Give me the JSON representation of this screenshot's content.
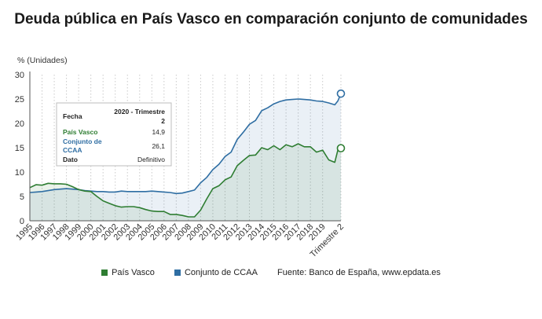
{
  "title": "Deuda pública en País Vasco en comparación conjunto de comunidades",
  "chart_data": {
    "type": "area",
    "title": "Deuda pública en País Vasco en comparación conjunto de comunidades",
    "ylabel": "% (Unidades)",
    "xlabel": "",
    "ylim": [
      0,
      30
    ],
    "yticks": [
      0,
      5,
      10,
      15,
      20,
      25,
      30
    ],
    "xlim": [
      1995,
      2020.5
    ],
    "xtick_labels": [
      "1995",
      "1996",
      "1997",
      "1998",
      "1999",
      "2000",
      "2001",
      "2002",
      "2003",
      "2004",
      "2005",
      "2006",
      "2007",
      "2008",
      "2009",
      "2010",
      "2011",
      "2012",
      "2013",
      "2014",
      "2015",
      "2016",
      "2017",
      "2018",
      "2019",
      "Trimestre 2"
    ],
    "grid": "vertical dotted",
    "legend_position": "bottom",
    "series": [
      {
        "name": "País Vasco",
        "color": "#2e7d32",
        "x": [
          1995,
          1995.5,
          1996,
          1996.5,
          1997,
          1997.5,
          1998,
          1998.5,
          1999,
          1999.5,
          2000,
          2000.5,
          2001,
          2001.5,
          2002,
          2002.5,
          2003,
          2003.5,
          2004,
          2004.5,
          2005,
          2005.5,
          2006,
          2006.5,
          2007,
          2007.5,
          2008,
          2008.5,
          2009,
          2009.5,
          2010,
          2010.5,
          2011,
          2011.5,
          2012,
          2012.5,
          2013,
          2013.5,
          2014,
          2014.5,
          2015,
          2015.5,
          2016,
          2016.5,
          2017,
          2017.5,
          2018,
          2018.5,
          2019,
          2019.5,
          2020,
          2020.25,
          2020.5
        ],
        "values": [
          6.8,
          7.4,
          7.3,
          7.7,
          7.6,
          7.6,
          7.5,
          7.0,
          6.4,
          6.1,
          6.0,
          5.0,
          4.1,
          3.6,
          3.1,
          2.8,
          2.9,
          2.9,
          2.7,
          2.3,
          2.0,
          1.9,
          1.9,
          1.3,
          1.3,
          1.1,
          0.8,
          0.8,
          2.2,
          4.5,
          6.6,
          7.2,
          8.4,
          9.0,
          11.3,
          12.4,
          13.4,
          13.5,
          15.0,
          14.6,
          15.4,
          14.6,
          15.6,
          15.2,
          15.8,
          15.2,
          15.2,
          14.1,
          14.5,
          12.5,
          12.0,
          14.5,
          14.9
        ]
      },
      {
        "name": "Conjunto de CCAA",
        "color": "#2f6ea3",
        "x": [
          1995,
          1995.5,
          1996,
          1996.5,
          1997,
          1997.5,
          1998,
          1998.5,
          1999,
          1999.5,
          2000,
          2000.5,
          2001,
          2001.5,
          2002,
          2002.5,
          2003,
          2003.5,
          2004,
          2004.5,
          2005,
          2005.5,
          2006,
          2006.5,
          2007,
          2007.5,
          2008,
          2008.5,
          2009,
          2009.5,
          2010,
          2010.5,
          2011,
          2011.5,
          2012,
          2012.5,
          2013,
          2013.5,
          2014,
          2014.5,
          2015,
          2015.5,
          2016,
          2016.5,
          2017,
          2017.5,
          2018,
          2018.5,
          2019,
          2019.5,
          2020,
          2020.25,
          2020.5
        ],
        "values": [
          5.8,
          5.9,
          6.0,
          6.2,
          6.4,
          6.5,
          6.6,
          6.5,
          6.4,
          6.2,
          6.1,
          6.0,
          6.0,
          5.9,
          5.9,
          6.1,
          6.0,
          6.0,
          6.0,
          6.0,
          6.1,
          6.0,
          5.9,
          5.8,
          5.6,
          5.7,
          6.0,
          6.3,
          7.8,
          8.9,
          10.5,
          11.6,
          13.2,
          14.1,
          16.7,
          18.2,
          19.8,
          20.6,
          22.6,
          23.2,
          24.0,
          24.5,
          24.8,
          24.9,
          25.0,
          24.9,
          24.8,
          24.6,
          24.5,
          24.2,
          23.8,
          24.6,
          26.1
        ]
      }
    ],
    "tooltip": {
      "header_label": "Fecha",
      "header_value_line1": "2020 - Trimestre",
      "header_value_line2": "2",
      "rows": [
        {
          "label": "País Vasco",
          "value": "14,9",
          "color": "#2e7d32"
        },
        {
          "label_line1": "Conjunto de",
          "label_line2": "CCAA",
          "value": "26,1",
          "color": "#2f6ea3"
        },
        {
          "label": "Dato",
          "value": "Definitivo",
          "color": "#222222"
        }
      ]
    }
  },
  "legend": {
    "items": [
      {
        "label": "País Vasco",
        "color": "#2e7d32"
      },
      {
        "label": "Conjunto de CCAA",
        "color": "#2f6ea3"
      }
    ],
    "source": "Fuente: Banco de España, www.epdata.es"
  }
}
